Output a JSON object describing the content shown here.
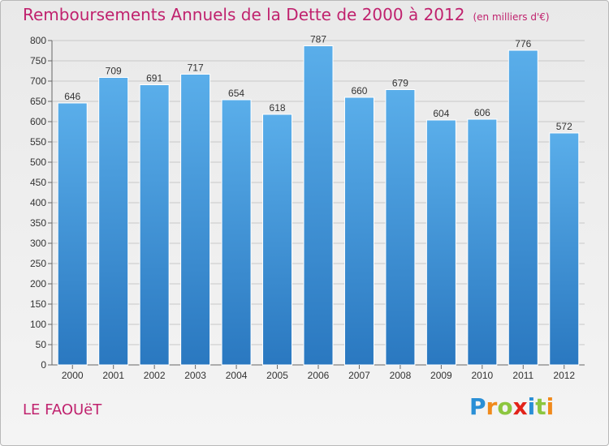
{
  "header": {
    "title": "Remboursements Annuels de la Dette de 2000 à 2012",
    "unit": "(en milliers d'€)"
  },
  "footer": {
    "town": "LE FAOUëT",
    "logo_letters": [
      {
        "ch": "P",
        "color": "#2a8fd6"
      },
      {
        "ch": "r",
        "color": "#f08a1c"
      },
      {
        "ch": "o",
        "color": "#8cc63f"
      },
      {
        "ch": "x",
        "color": "#e2231a"
      },
      {
        "ch": "i",
        "color": "#2a8fd6"
      },
      {
        "ch": "t",
        "color": "#8cc63f"
      },
      {
        "ch": "i",
        "color": "#f08a1c"
      }
    ]
  },
  "chart_data": {
    "type": "bar",
    "title": "Remboursements Annuels de la Dette de 2000 à 2012",
    "subtitle": "(en milliers d'€)",
    "categories": [
      "2000",
      "2001",
      "2002",
      "2003",
      "2004",
      "2005",
      "2006",
      "2007",
      "2008",
      "2009",
      "2010",
      "2011",
      "2012"
    ],
    "values": [
      646,
      709,
      691,
      717,
      654,
      618,
      787,
      660,
      679,
      604,
      606,
      776,
      572
    ],
    "ylim": [
      0,
      800
    ],
    "yticks": [
      0,
      50,
      100,
      150,
      200,
      250,
      300,
      350,
      400,
      450,
      500,
      550,
      600,
      650,
      700,
      750,
      800
    ],
    "grid": true,
    "legend": "none",
    "colors": {
      "bar_top": "#5aaeea",
      "bar_bottom": "#2a78c0",
      "grid": "#c8c8c8",
      "axis_text": "#333333"
    }
  }
}
